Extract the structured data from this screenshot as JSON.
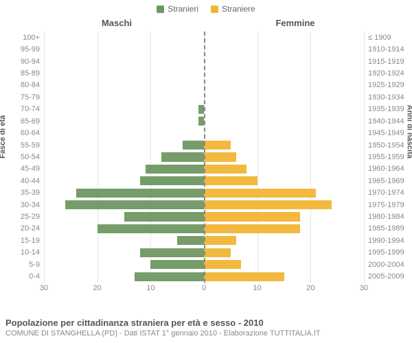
{
  "legend": {
    "male": {
      "label": "Stranieri",
      "color": "#6f9861"
    },
    "female": {
      "label": "Straniere",
      "color": "#f2b535"
    }
  },
  "column_titles": {
    "male": "Maschi",
    "female": "Femmine"
  },
  "y_axis_left_label": "Fasce di età",
  "y_axis_right_label": "Anni di nascita",
  "x_axis": {
    "max": 30,
    "ticks": [
      30,
      20,
      10,
      0,
      10,
      20,
      30
    ]
  },
  "colors": {
    "male_bar": "#6f9861",
    "female_bar": "#f2b535",
    "grid": "#e5e5e5",
    "centerline": "#888888",
    "background": "#ffffff",
    "text_muted": "#888888",
    "text": "#555555"
  },
  "rows": [
    {
      "age": "100+",
      "year": "≤ 1909",
      "male": 0,
      "female": 0
    },
    {
      "age": "95-99",
      "year": "1910-1914",
      "male": 0,
      "female": 0
    },
    {
      "age": "90-94",
      "year": "1915-1919",
      "male": 0,
      "female": 0
    },
    {
      "age": "85-89",
      "year": "1920-1924",
      "male": 0,
      "female": 0
    },
    {
      "age": "80-84",
      "year": "1925-1929",
      "male": 0,
      "female": 0
    },
    {
      "age": "75-79",
      "year": "1930-1934",
      "male": 0,
      "female": 0
    },
    {
      "age": "70-74",
      "year": "1935-1939",
      "male": 1,
      "female": 0
    },
    {
      "age": "65-69",
      "year": "1940-1944",
      "male": 1,
      "female": 0
    },
    {
      "age": "60-64",
      "year": "1945-1949",
      "male": 0,
      "female": 0
    },
    {
      "age": "55-59",
      "year": "1950-1954",
      "male": 4,
      "female": 5
    },
    {
      "age": "50-54",
      "year": "1955-1959",
      "male": 8,
      "female": 6
    },
    {
      "age": "45-49",
      "year": "1960-1964",
      "male": 11,
      "female": 8
    },
    {
      "age": "40-44",
      "year": "1965-1969",
      "male": 12,
      "female": 10
    },
    {
      "age": "35-39",
      "year": "1970-1974",
      "male": 24,
      "female": 21
    },
    {
      "age": "30-34",
      "year": "1975-1979",
      "male": 26,
      "female": 24
    },
    {
      "age": "25-29",
      "year": "1980-1984",
      "male": 15,
      "female": 18
    },
    {
      "age": "20-24",
      "year": "1985-1989",
      "male": 20,
      "female": 18
    },
    {
      "age": "15-19",
      "year": "1990-1994",
      "male": 5,
      "female": 6
    },
    {
      "age": "10-14",
      "year": "1995-1999",
      "male": 12,
      "female": 5
    },
    {
      "age": "5-9",
      "year": "2000-2004",
      "male": 10,
      "female": 7
    },
    {
      "age": "0-4",
      "year": "2005-2009",
      "male": 13,
      "female": 15
    }
  ],
  "footer": {
    "title": "Popolazione per cittadinanza straniera per età e sesso - 2010",
    "subtitle": "COMUNE DI STANGHELLA (PD) - Dati ISTAT 1° gennaio 2010 - Elaborazione TUTTITALIA.IT"
  }
}
